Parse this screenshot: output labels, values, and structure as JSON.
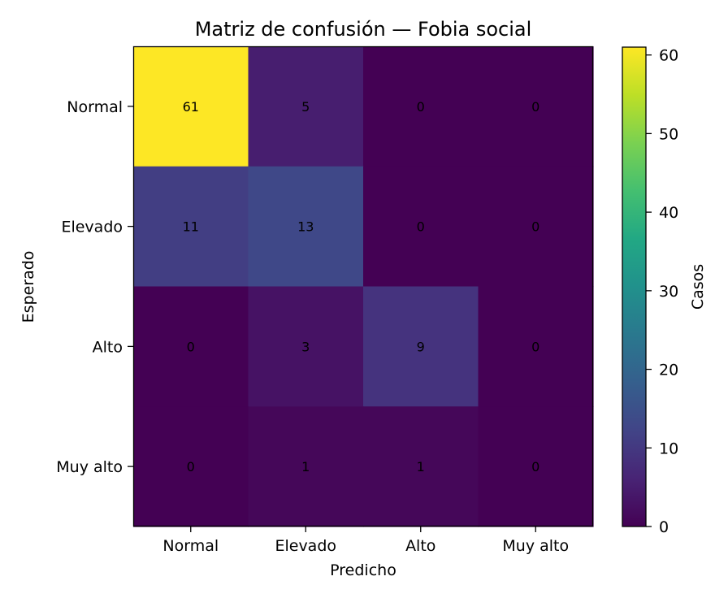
{
  "chart_data": {
    "type": "heatmap",
    "title": "Matriz de confusión — Fobia social",
    "xlabel": "Predicho",
    "ylabel": "Esperado",
    "x_categories": [
      "Normal",
      "Elevado",
      "Alto",
      "Muy alto"
    ],
    "y_categories": [
      "Normal",
      "Elevado",
      "Alto",
      "Muy alto"
    ],
    "values": [
      [
        61,
        5,
        0,
        0
      ],
      [
        11,
        13,
        0,
        0
      ],
      [
        0,
        3,
        9,
        0
      ],
      [
        0,
        1,
        1,
        0
      ]
    ],
    "colorbar": {
      "label": "Casos",
      "range": [
        0,
        61
      ],
      "ticks": [
        "0",
        "10",
        "20",
        "30",
        "40",
        "50",
        "60"
      ],
      "colormap": "viridis"
    }
  }
}
